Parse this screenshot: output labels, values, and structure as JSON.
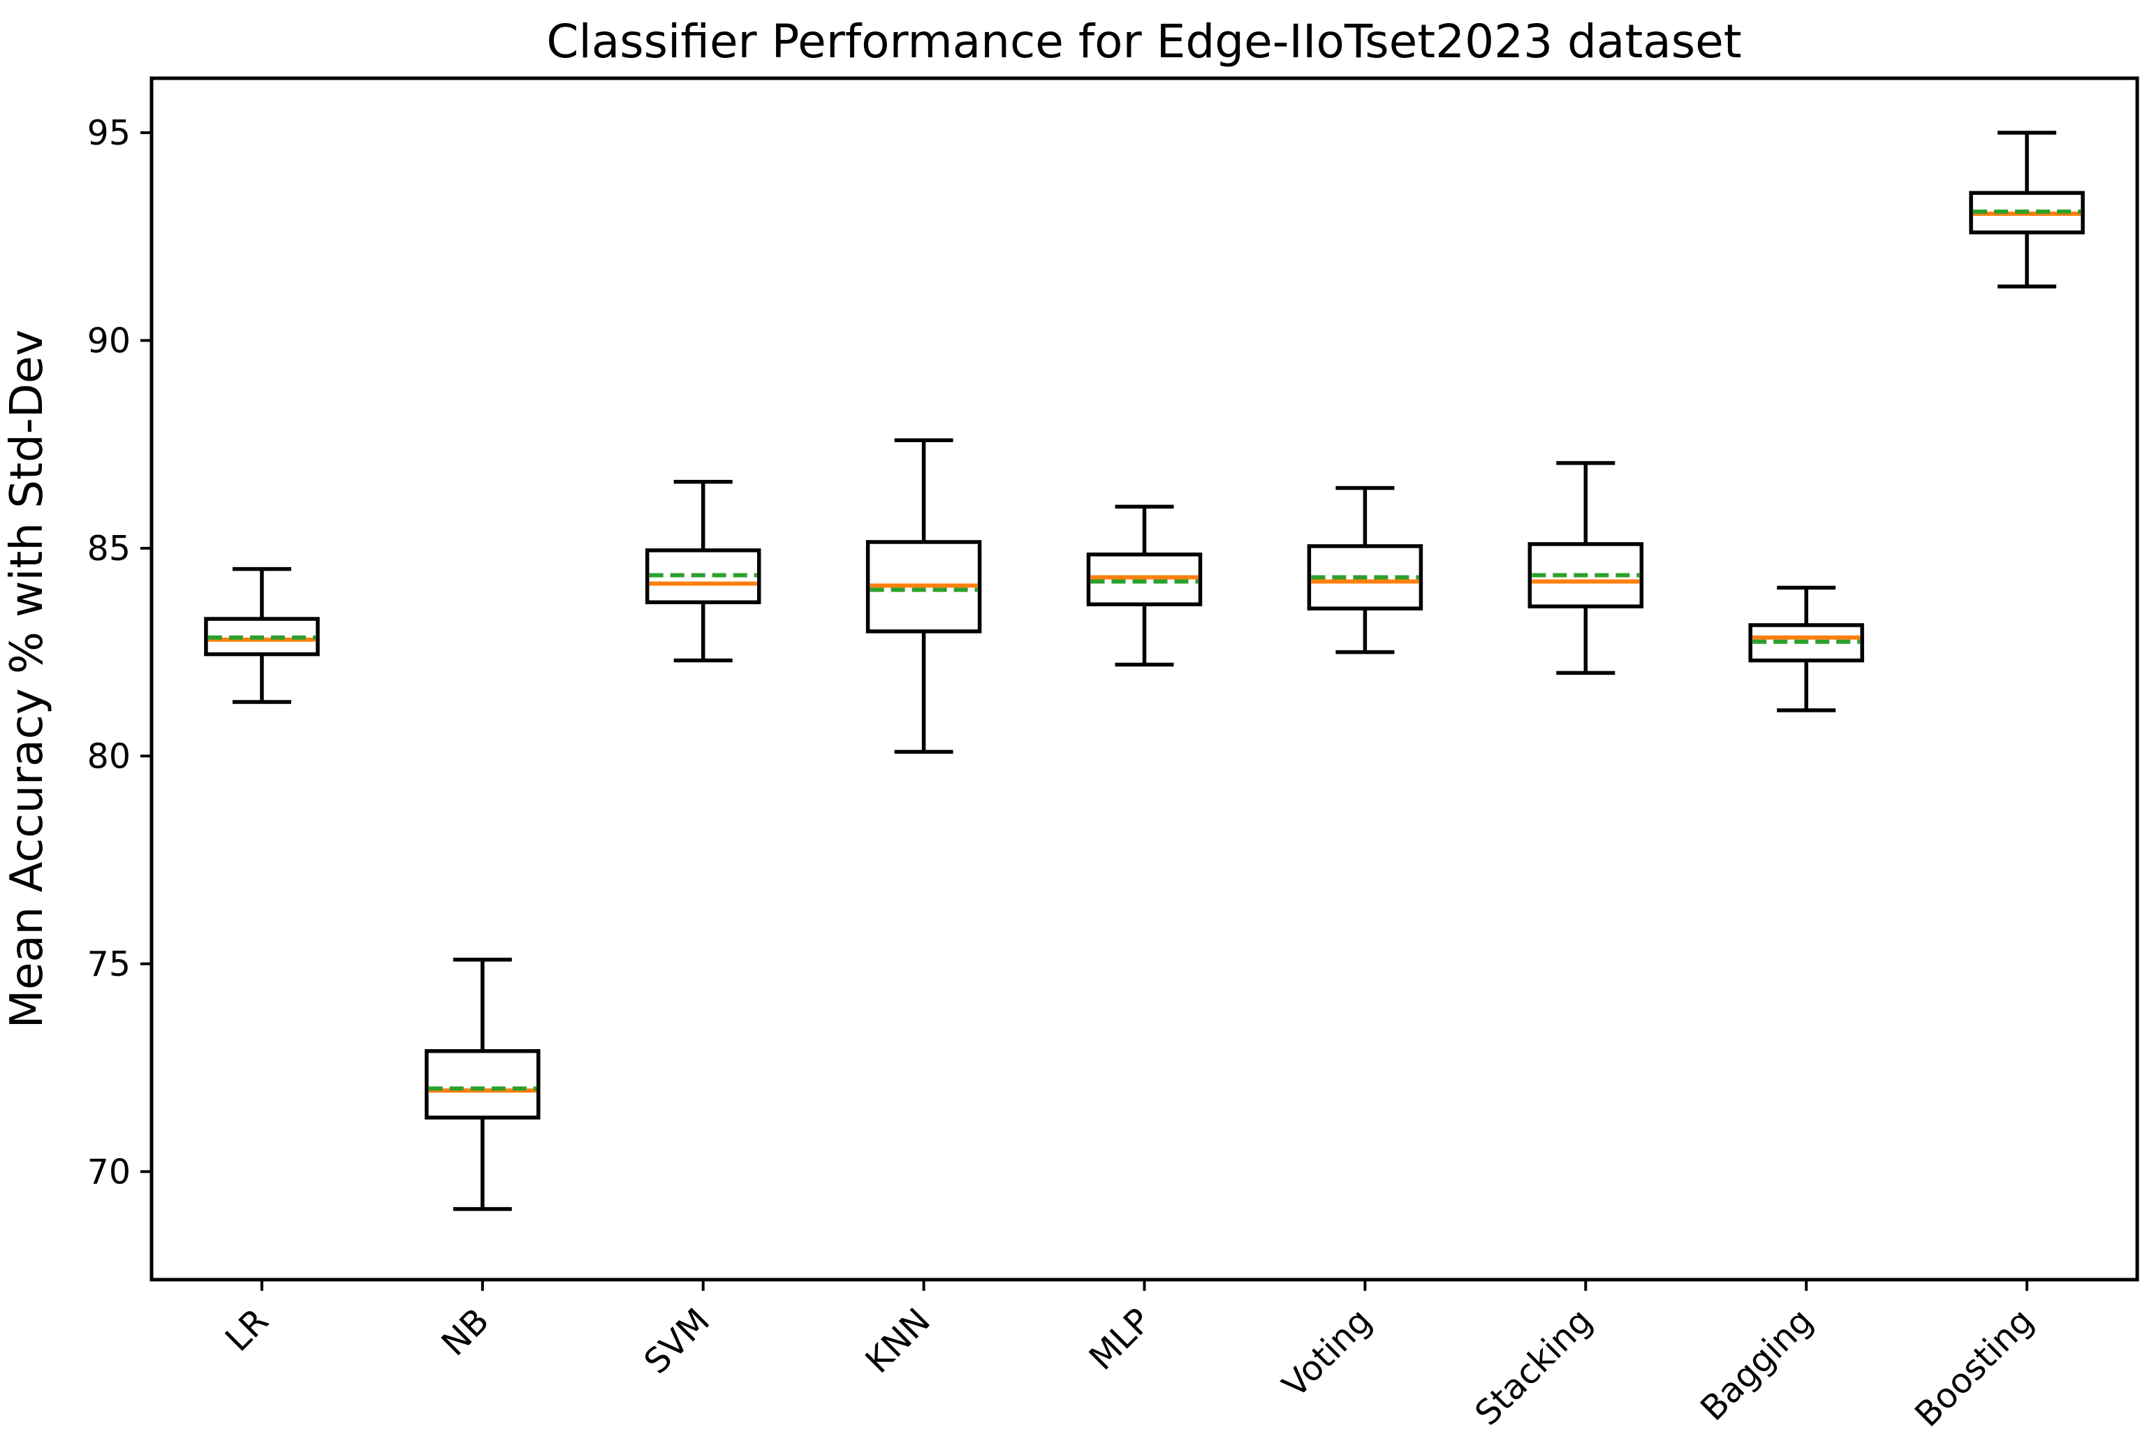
{
  "figure": {
    "title": "Classifier Performance for Edge-IIoTset2023 dataset",
    "ylabel": "Mean Accuracy % with Std-Dev"
  },
  "chart_data": {
    "type": "box",
    "title": "Classifier Performance for Edge-IIoTset2023 dataset",
    "xlabel": "",
    "ylabel": "Mean Accuracy % with Std-Dev",
    "categories": [
      "LR",
      "NB",
      "SVM",
      "KNN",
      "MLP",
      "Voting",
      "Stacking",
      "Bagging",
      "Boosting"
    ],
    "yticks": [
      95,
      90,
      85,
      80,
      75,
      70
    ],
    "ylim": [
      67.4,
      96.31
    ],
    "grid": false,
    "legend": "none",
    "box_style": {
      "box_color": "#000000",
      "median_color": "#ff7f0e",
      "mean_color": "#2ca02c",
      "mean_linestyle": "dashed",
      "fill": "#ffffff"
    },
    "series": [
      {
        "name": "LR",
        "whislo": 81.3,
        "q1": 82.45,
        "med": 82.8,
        "mean": 82.85,
        "q3": 83.3,
        "whishi": 84.5
      },
      {
        "name": "NB",
        "whislo": 69.1,
        "q1": 71.3,
        "med": 71.95,
        "mean": 72.0,
        "q3": 72.9,
        "whishi": 75.1
      },
      {
        "name": "SVM",
        "whislo": 82.3,
        "q1": 83.7,
        "med": 84.15,
        "mean": 84.35,
        "q3": 84.95,
        "whishi": 86.6
      },
      {
        "name": "KNN",
        "whislo": 80.1,
        "q1": 83.0,
        "med": 84.1,
        "mean": 84.0,
        "q3": 85.15,
        "whishi": 87.6
      },
      {
        "name": "MLP",
        "whislo": 82.2,
        "q1": 83.65,
        "med": 84.3,
        "mean": 84.2,
        "q3": 84.85,
        "whishi": 86.0
      },
      {
        "name": "Voting",
        "whislo": 82.5,
        "q1": 83.55,
        "med": 84.2,
        "mean": 84.3,
        "q3": 85.05,
        "whishi": 86.45
      },
      {
        "name": "Stacking",
        "whislo": 82.0,
        "q1": 83.6,
        "med": 84.2,
        "mean": 84.35,
        "q3": 85.1,
        "whishi": 87.05
      },
      {
        "name": "Bagging",
        "whislo": 81.1,
        "q1": 82.3,
        "med": 82.85,
        "mean": 82.75,
        "q3": 83.15,
        "whishi": 84.05
      },
      {
        "name": "Boosting",
        "whislo": 91.3,
        "q1": 92.6,
        "med": 93.05,
        "mean": 93.1,
        "q3": 93.55,
        "whishi": 95.0
      }
    ]
  }
}
